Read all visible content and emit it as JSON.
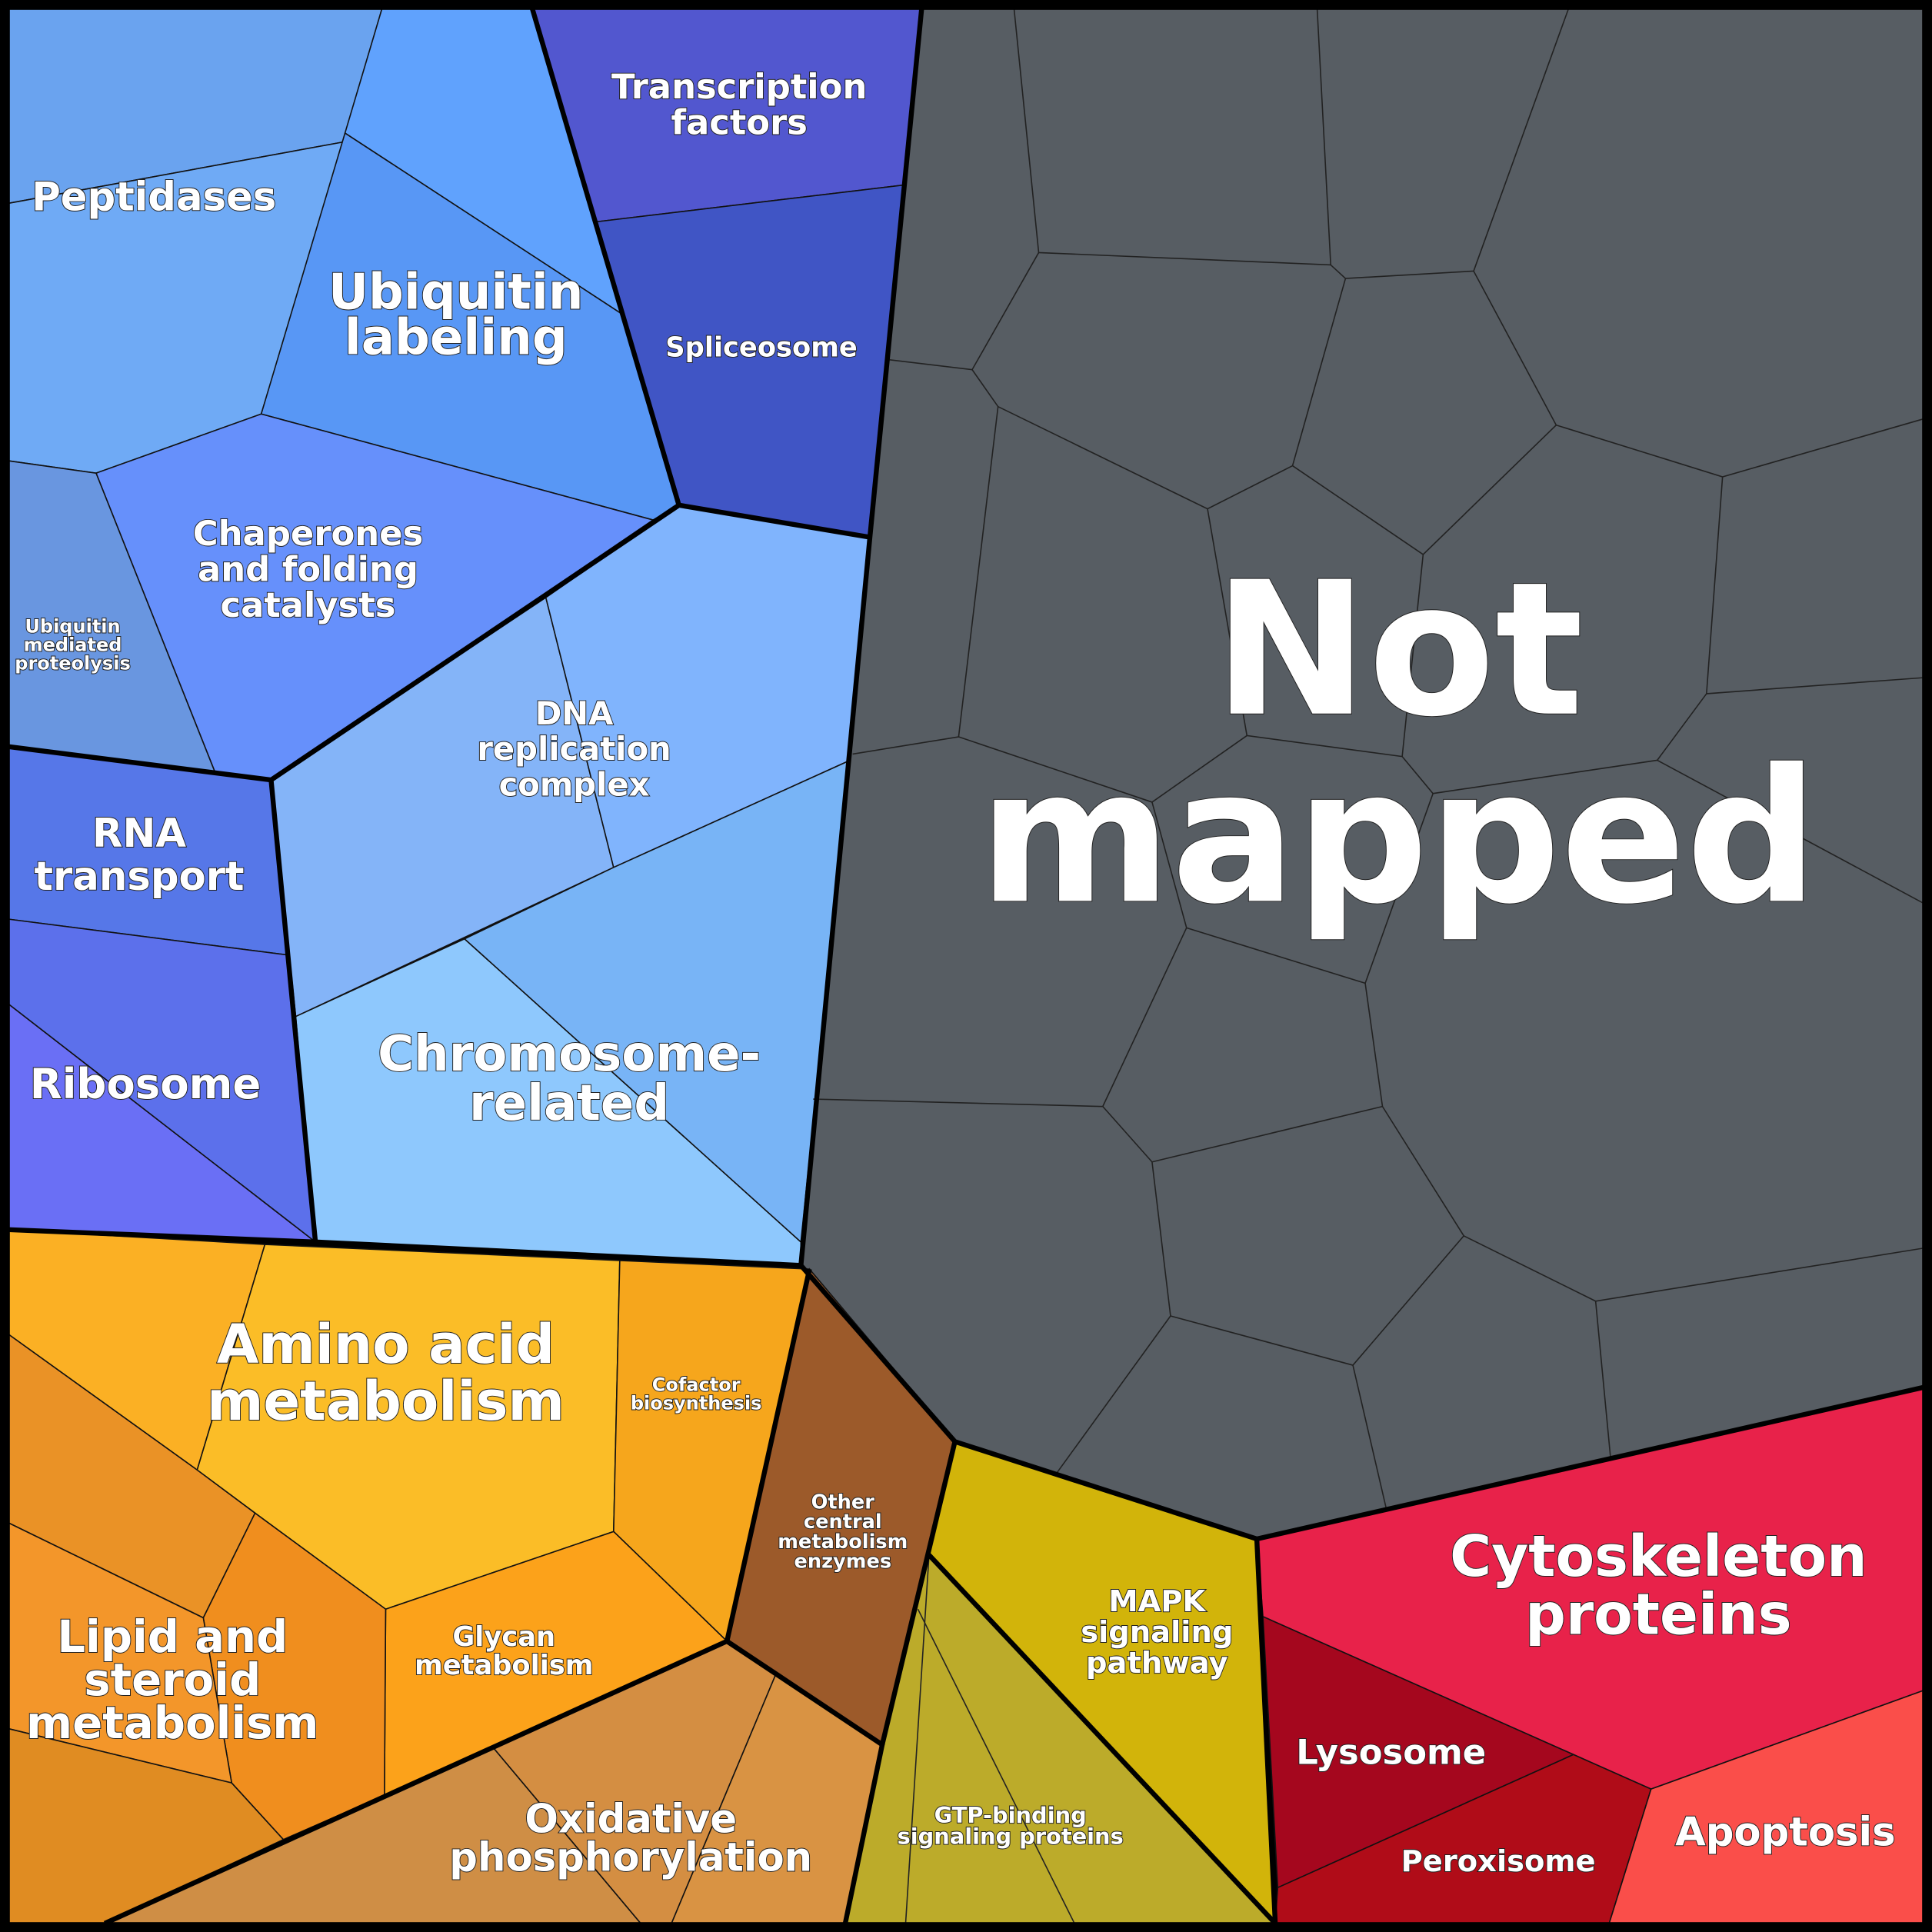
{
  "regions": [
    {
      "label": [
        "Peptidases"
      ]
    },
    {
      "label": [
        "Ubiquitin",
        "labeling"
      ]
    },
    {
      "label": [
        "Transcription",
        "factors"
      ]
    },
    {
      "label": [
        "Spliceosome"
      ]
    },
    {
      "label": [
        "Chaperones",
        "and folding",
        "catalysts"
      ]
    },
    {
      "label": [
        "Ubiquitin",
        "mediated",
        "proteolysis"
      ]
    },
    {
      "label": [
        "DNA",
        "replication",
        "complex"
      ]
    },
    {
      "label": [
        "Chromosome-",
        "related"
      ]
    },
    {
      "label": [
        "RNA",
        "transport"
      ]
    },
    {
      "label": [
        "Ribosome"
      ]
    },
    {
      "label": [
        "Not",
        "mapped"
      ]
    },
    {
      "label": [
        "Amino acid",
        "metabolism"
      ]
    },
    {
      "label": [
        "Cofactor",
        "biosynthesis"
      ]
    },
    {
      "label": [
        "Glycan",
        "metabolism"
      ]
    },
    {
      "label": [
        "Lipid and",
        "steroid",
        "metabolism"
      ]
    },
    {
      "label": [
        "Oxidative",
        "phosphorylation"
      ]
    },
    {
      "label": [
        "Other",
        "central",
        "metabolism",
        "enzymes"
      ]
    },
    {
      "label": [
        "MAPK",
        "signaling",
        "pathway"
      ]
    },
    {
      "label": [
        "GTP-binding",
        "signaling proteins"
      ]
    },
    {
      "label": [
        "Cytoskeleton",
        "proteins"
      ]
    },
    {
      "label": [
        "Lysosome"
      ]
    },
    {
      "label": [
        "Peroxisome"
      ]
    },
    {
      "label": [
        "Apoptosis"
      ]
    }
  ]
}
